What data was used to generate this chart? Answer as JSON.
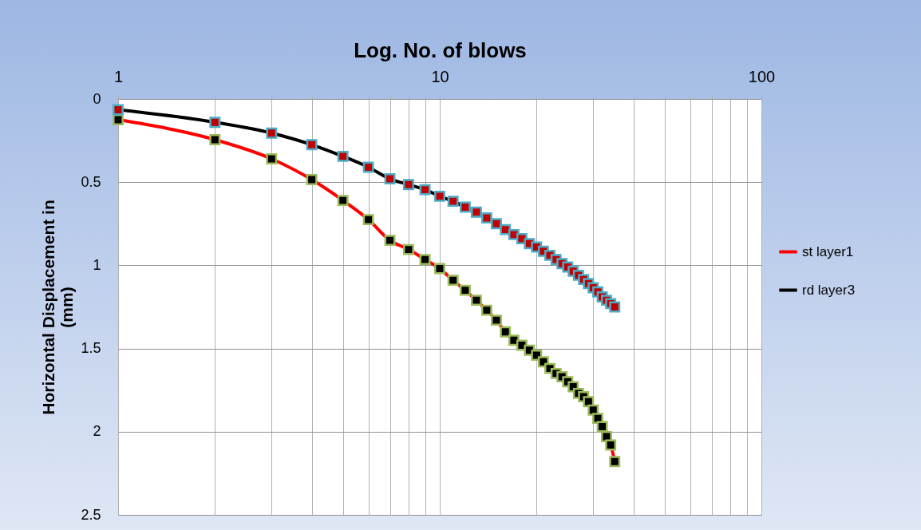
{
  "chart_data": {
    "type": "line",
    "xlabel": "Log. No. of blows",
    "ylabel": "Horizontal Displacement in (mm)",
    "log": "x",
    "xlim": [
      1,
      100
    ],
    "xticks": [
      1,
      {
        "value": 2,
        "label": null
      },
      {
        "value": 3,
        "label": null
      },
      {
        "value": 4,
        "label": null
      },
      {
        "value": 5,
        "label": null
      },
      {
        "value": 6,
        "label": null
      },
      {
        "value": 7,
        "label": null
      },
      {
        "value": 8,
        "label": null
      },
      {
        "value": 9,
        "label": null
      },
      10,
      {
        "value": 20,
        "label": null
      },
      {
        "value": 30,
        "label": null
      },
      {
        "value": 40,
        "label": null
      },
      {
        "value": 50,
        "label": null
      },
      {
        "value": 60,
        "label": null
      },
      {
        "value": 70,
        "label": null
      },
      {
        "value": 80,
        "label": null
      },
      {
        "value": 90,
        "label": null
      },
      100
    ],
    "ylim": [
      2.5,
      0
    ],
    "yticks": [
      0,
      0.5,
      1,
      1.5,
      2,
      2.5
    ],
    "grid": true,
    "legend": "right",
    "marker": "square",
    "line_style": "solid",
    "series": [
      {
        "name": "st layer1",
        "color": "#ff0000",
        "x": [
          1,
          2,
          3,
          4,
          5,
          6,
          7,
          8,
          9,
          10,
          11,
          12,
          13,
          14,
          15,
          16,
          17,
          18,
          19,
          20,
          21,
          22,
          23,
          24,
          25,
          26,
          27,
          28,
          29,
          30,
          31,
          32,
          33,
          34,
          35
        ],
        "values": [
          0.125,
          0.245,
          0.36,
          0.485,
          0.61,
          0.725,
          0.85,
          0.905,
          0.965,
          1.02,
          1.09,
          1.15,
          1.21,
          1.27,
          1.33,
          1.4,
          1.45,
          1.48,
          1.51,
          1.54,
          1.58,
          1.62,
          1.65,
          1.67,
          1.7,
          1.73,
          1.77,
          1.79,
          1.82,
          1.87,
          1.92,
          1.97,
          2.03,
          2.08,
          2.18
        ]
      },
      {
        "name": "rd layer3",
        "color": "#000000",
        "x": [
          1,
          2,
          3,
          4,
          5,
          6,
          7,
          8,
          9,
          10,
          11,
          12,
          13,
          14,
          15,
          16,
          17,
          18,
          19,
          20,
          21,
          22,
          23,
          24,
          25,
          26,
          27,
          28,
          29,
          30,
          31,
          32,
          33,
          34,
          35
        ],
        "values": [
          0.065,
          0.14,
          0.205,
          0.275,
          0.345,
          0.41,
          0.48,
          0.515,
          0.545,
          0.585,
          0.615,
          0.65,
          0.68,
          0.715,
          0.75,
          0.785,
          0.815,
          0.84,
          0.87,
          0.89,
          0.915,
          0.94,
          0.965,
          0.99,
          1.01,
          1.035,
          1.06,
          1.085,
          1.11,
          1.135,
          1.16,
          1.19,
          1.21,
          1.23,
          1.25
        ]
      }
    ]
  }
}
